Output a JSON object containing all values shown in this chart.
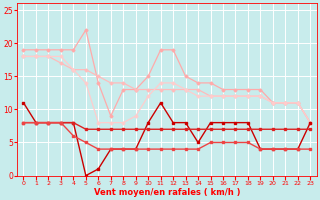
{
  "background_color": "#c8ecec",
  "grid_color": "#ffffff",
  "xlabel": "Vent moyen/en rafales ( km/h )",
  "xlim": [
    -0.5,
    23.5
  ],
  "ylim": [
    0,
    26
  ],
  "yticks": [
    0,
    5,
    10,
    15,
    20,
    25
  ],
  "xticks": [
    0,
    1,
    2,
    3,
    4,
    5,
    6,
    7,
    8,
    9,
    10,
    11,
    12,
    13,
    14,
    15,
    16,
    17,
    18,
    19,
    20,
    21,
    22,
    23
  ],
  "lines": [
    {
      "x": [
        0,
        1,
        2,
        3,
        4,
        5,
        6,
        7,
        8,
        9,
        10,
        11,
        12,
        13,
        14,
        15,
        16,
        17,
        18,
        19,
        20,
        21,
        22,
        23
      ],
      "y": [
        19,
        19,
        19,
        19,
        19,
        22,
        14,
        9,
        13,
        13,
        15,
        19,
        19,
        15,
        14,
        14,
        13,
        13,
        13,
        13,
        11,
        11,
        11,
        8
      ],
      "color": "#ffaaaa",
      "lw": 0.9,
      "marker": "D",
      "ms": 1.5
    },
    {
      "x": [
        0,
        1,
        2,
        3,
        4,
        5,
        6,
        7,
        8,
        9,
        10,
        11,
        12,
        13,
        14,
        15,
        16,
        17,
        18,
        19,
        20,
        21,
        22,
        23
      ],
      "y": [
        18,
        18,
        18,
        17,
        16,
        16,
        15,
        14,
        14,
        13,
        13,
        13,
        13,
        13,
        13,
        12,
        12,
        12,
        12,
        12,
        11,
        11,
        11,
        8
      ],
      "color": "#ffbbbb",
      "lw": 0.9,
      "marker": "D",
      "ms": 1.5
    },
    {
      "x": [
        0,
        1,
        2,
        3,
        4,
        5,
        6,
        7,
        8,
        9,
        10,
        11,
        12,
        13,
        14,
        15,
        16,
        17,
        18,
        19,
        20,
        21,
        22,
        23
      ],
      "y": [
        18,
        18,
        18,
        18,
        16,
        14,
        8,
        8,
        8,
        9,
        12,
        14,
        14,
        13,
        12,
        12,
        12,
        12,
        12,
        12,
        11,
        11,
        11,
        8
      ],
      "color": "#ffcccc",
      "lw": 0.9,
      "marker": "D",
      "ms": 1.5
    },
    {
      "x": [
        0,
        1,
        2,
        3,
        4,
        5,
        6,
        7,
        8,
        9,
        10,
        11,
        12,
        13,
        14,
        15,
        16,
        17,
        18,
        19,
        20,
        21,
        22,
        23
      ],
      "y": [
        11,
        8,
        8,
        8,
        8,
        0,
        1,
        4,
        4,
        4,
        8,
        11,
        8,
        8,
        5,
        8,
        8,
        8,
        8,
        4,
        4,
        4,
        4,
        8
      ],
      "color": "#cc0000",
      "lw": 1.0,
      "marker": "s",
      "ms": 2.0
    },
    {
      "x": [
        0,
        1,
        2,
        3,
        4,
        5,
        6,
        7,
        8,
        9,
        10,
        11,
        12,
        13,
        14,
        15,
        16,
        17,
        18,
        19,
        20,
        21,
        22,
        23
      ],
      "y": [
        8,
        8,
        8,
        8,
        8,
        7,
        7,
        7,
        7,
        7,
        7,
        7,
        7,
        7,
        7,
        7,
        7,
        7,
        7,
        7,
        7,
        7,
        7,
        7
      ],
      "color": "#dd2222",
      "lw": 1.0,
      "marker": "s",
      "ms": 2.0
    },
    {
      "x": [
        0,
        1,
        2,
        3,
        4,
        5,
        6,
        7,
        8,
        9,
        10,
        11,
        12,
        13,
        14,
        15,
        16,
        17,
        18,
        19,
        20,
        21,
        22,
        23
      ],
      "y": [
        8,
        8,
        8,
        8,
        6,
        5,
        4,
        4,
        4,
        4,
        4,
        4,
        4,
        4,
        4,
        5,
        5,
        5,
        5,
        4,
        4,
        4,
        4,
        4
      ],
      "color": "#ee4444",
      "lw": 1.0,
      "marker": "s",
      "ms": 2.0
    }
  ],
  "tick_color": "#ff0000",
  "label_color": "#ff0000",
  "spine_color": "#ff0000",
  "xlabel_fontsize": 6.0,
  "xlabel_fontweight": "bold",
  "xtick_fontsize": 4.5,
  "ytick_fontsize": 5.5
}
